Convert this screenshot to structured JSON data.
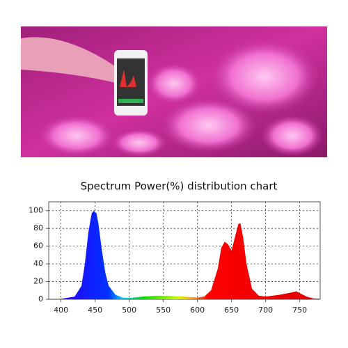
{
  "chart_data": {
    "type": "area",
    "title": "Spectrum Power(%) distribution chart",
    "series": [
      {
        "name": null,
        "color": "spectrum",
        "x": [
          380,
          400,
          420,
          430,
          435,
          440,
          445,
          448,
          452,
          455,
          460,
          465,
          470,
          480,
          490,
          500,
          520,
          540,
          560,
          580,
          600,
          610,
          620,
          630,
          635,
          640,
          645,
          650,
          655,
          660,
          663,
          667,
          672,
          680,
          690,
          700,
          720,
          740,
          745,
          750,
          760,
          770,
          780
        ],
        "values": [
          0,
          0.5,
          3,
          15,
          40,
          75,
          97,
          100,
          97,
          85,
          55,
          30,
          15,
          5,
          2,
          1.5,
          3,
          4,
          4,
          3,
          2,
          3,
          10,
          35,
          58,
          65,
          62,
          55,
          70,
          85,
          86,
          70,
          40,
          12,
          4,
          3,
          5,
          8,
          9,
          7,
          3,
          1,
          0.5
        ]
      }
    ],
    "gradient": [
      {
        "at": 400,
        "color": "#2a00ff"
      },
      {
        "at": 470,
        "color": "#0033ff"
      },
      {
        "at": 490,
        "color": "#00c8ff"
      },
      {
        "at": 520,
        "color": "#00e000"
      },
      {
        "at": 570,
        "color": "#c8ff00"
      },
      {
        "at": 590,
        "color": "#ffb000"
      },
      {
        "at": 615,
        "color": "#ff0000"
      },
      {
        "at": 780,
        "color": "#e00000"
      }
    ],
    "xlim": [
      382,
      780
    ],
    "ylim": [
      0,
      110
    ],
    "xticks": [
      400,
      450,
      500,
      550,
      600,
      650,
      700,
      750
    ],
    "yticks": [
      0,
      20,
      40,
      60,
      80,
      100
    ],
    "grid": true
  }
}
